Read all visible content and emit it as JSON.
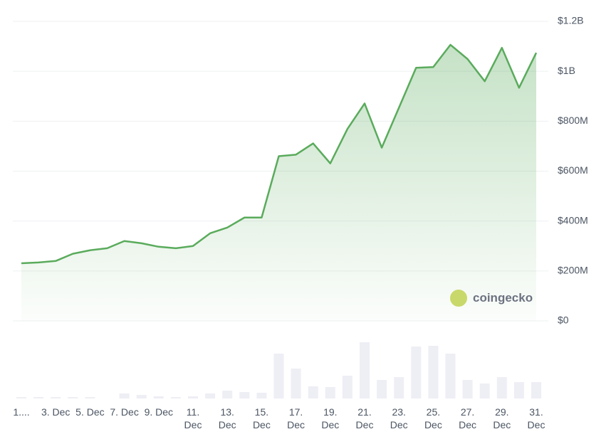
{
  "chart_data": {
    "type": "area",
    "watermark": "coingecko",
    "categories": [
      "1....",
      null,
      "3. Dec",
      null,
      "5. Dec",
      null,
      "7. Dec",
      null,
      "9. Dec",
      null,
      "11. Dec",
      null,
      "13. Dec",
      null,
      "15. Dec",
      null,
      "17. Dec",
      null,
      "19. Dec",
      null,
      "21. Dec",
      null,
      "23. Dec",
      null,
      "25. Dec",
      null,
      "27. Dec",
      null,
      "29. Dec",
      null,
      "31. Dec"
    ],
    "series": [
      {
        "color": "#5aab5c",
        "values": [
          231,
          234,
          240,
          269,
          283,
          291,
          320,
          311,
          297,
          291,
          300,
          351,
          374,
          414,
          414,
          660,
          666,
          711,
          631,
          769,
          871,
          694,
          854,
          1014,
          1017,
          1106,
          1049,
          960,
          1094,
          934,
          1074
        ]
      }
    ],
    "volumes": {
      "color": "#eeeef5",
      "values": [
        2,
        2,
        2,
        2,
        2,
        0,
        7,
        5,
        3,
        2,
        3,
        7,
        11,
        9,
        8,
        63,
        42,
        17,
        16,
        32,
        79,
        26,
        30,
        73,
        74,
        63,
        26,
        21,
        30,
        23,
        23
      ],
      "ylim": [
        0,
        100
      ]
    },
    "ylim": [
      0,
      1200
    ],
    "yticks": [
      {
        "value": 0,
        "label": "$0"
      },
      {
        "value": 200,
        "label": "$200M"
      },
      {
        "value": 400,
        "label": "$400M"
      },
      {
        "value": 600,
        "label": "$600M"
      },
      {
        "value": 800,
        "label": "$800M"
      },
      {
        "value": 1000,
        "label": "$1B"
      },
      {
        "value": 1200,
        "label": "$1.2B"
      }
    ],
    "grid": true
  }
}
